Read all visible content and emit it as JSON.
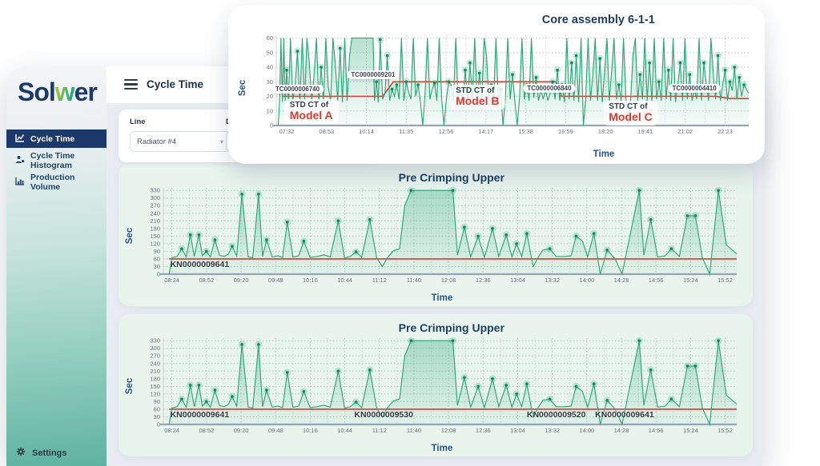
{
  "brand": {
    "part1": "Sol",
    "w": "w",
    "part2": "er"
  },
  "sidebar": {
    "items": [
      {
        "label": "Cycle Time",
        "active": true
      },
      {
        "label": "Cycle Time Histogram",
        "active": false
      },
      {
        "label": "Production Volume",
        "active": false
      }
    ],
    "settings_label": "Settings"
  },
  "header": {
    "title": "Cycle Time"
  },
  "filters": {
    "line_label": "Line",
    "line_value": "Radiator #4",
    "date_label": "Date",
    "chevron": "▾"
  },
  "colors": {
    "green": "#2aa876",
    "green_dark": "#15875d",
    "red": "#df382c",
    "navy": "#1d3e63"
  },
  "series_library": {
    "core_assembly": [
      [
        0.004,
        0
      ],
      [
        0.007,
        16
      ],
      [
        0.01,
        60
      ],
      [
        0.013,
        16
      ],
      [
        0.016,
        60
      ],
      [
        0.019,
        17
      ],
      [
        0.022,
        38
      ],
      [
        0.026,
        16
      ],
      [
        0.03,
        60
      ],
      [
        0.035,
        17
      ],
      [
        0.04,
        28
      ],
      [
        0.045,
        51
      ],
      [
        0.05,
        16
      ],
      [
        0.055,
        60
      ],
      [
        0.06,
        17
      ],
      [
        0.065,
        60
      ],
      [
        0.07,
        43
      ],
      [
        0.075,
        17
      ],
      [
        0.08,
        35
      ],
      [
        0.085,
        60
      ],
      [
        0.09,
        16
      ],
      [
        0.095,
        40
      ],
      [
        0.1,
        17
      ],
      [
        0.105,
        60
      ],
      [
        0.11,
        27
      ],
      [
        0.115,
        16
      ],
      [
        0.12,
        60
      ],
      [
        0.125,
        42
      ],
      [
        0.13,
        17
      ],
      [
        0.135,
        53
      ],
      [
        0.14,
        16
      ],
      [
        0.145,
        60
      ],
      [
        0.15,
        17
      ],
      [
        0.155,
        48
      ],
      [
        0.16,
        60
      ],
      [
        0.205,
        60
      ],
      [
        0.208,
        17
      ],
      [
        0.212,
        30
      ],
      [
        0.216,
        16
      ],
      [
        0.22,
        59
      ],
      [
        0.225,
        18
      ],
      [
        0.23,
        22
      ],
      [
        0.235,
        48
      ],
      [
        0.24,
        17
      ],
      [
        0.245,
        25
      ],
      [
        0.25,
        20
      ],
      [
        0.255,
        28
      ],
      [
        0.26,
        18
      ],
      [
        0.265,
        60
      ],
      [
        0.27,
        17
      ],
      [
        0.275,
        30
      ],
      [
        0.28,
        23
      ],
      [
        0.285,
        18
      ],
      [
        0.29,
        60
      ],
      [
        0.295,
        20
      ],
      [
        0.3,
        28
      ],
      [
        0.305,
        17
      ],
      [
        0.31,
        0
      ],
      [
        0.315,
        22
      ],
      [
        0.32,
        60
      ],
      [
        0.325,
        18
      ],
      [
        0.33,
        25
      ],
      [
        0.335,
        29
      ],
      [
        0.34,
        17
      ],
      [
        0.345,
        60
      ],
      [
        0.35,
        19
      ],
      [
        0.355,
        0
      ],
      [
        0.36,
        18
      ],
      [
        0.365,
        30
      ],
      [
        0.37,
        28
      ],
      [
        0.375,
        17
      ],
      [
        0.38,
        60
      ],
      [
        0.385,
        18
      ],
      [
        0.39,
        24
      ],
      [
        0.395,
        17
      ],
      [
        0.4,
        38
      ],
      [
        0.405,
        16
      ],
      [
        0.41,
        43
      ],
      [
        0.415,
        18
      ],
      [
        0.42,
        60
      ],
      [
        0.425,
        17
      ],
      [
        0.43,
        36
      ],
      [
        0.435,
        18
      ],
      [
        0.44,
        60
      ],
      [
        0.445,
        48
      ],
      [
        0.45,
        17
      ],
      [
        0.455,
        28
      ],
      [
        0.46,
        18
      ],
      [
        0.465,
        60
      ],
      [
        0.47,
        17
      ],
      [
        0.475,
        25
      ],
      [
        0.48,
        0
      ],
      [
        0.485,
        19
      ],
      [
        0.49,
        60
      ],
      [
        0.495,
        18
      ],
      [
        0.5,
        35
      ],
      [
        0.505,
        17
      ],
      [
        0.51,
        0
      ],
      [
        0.515,
        20
      ],
      [
        0.52,
        60
      ],
      [
        0.525,
        18
      ],
      [
        0.53,
        28
      ],
      [
        0.535,
        17
      ],
      [
        0.54,
        60
      ],
      [
        0.545,
        19
      ],
      [
        0.55,
        33
      ],
      [
        0.555,
        17
      ],
      [
        0.56,
        25
      ],
      [
        0.565,
        18
      ],
      [
        0.57,
        24
      ],
      [
        0.575,
        17
      ],
      [
        0.58,
        23
      ],
      [
        0.585,
        30
      ],
      [
        0.59,
        18
      ],
      [
        0.595,
        38
      ],
      [
        0.6,
        17
      ],
      [
        0.605,
        28
      ],
      [
        0.61,
        16
      ],
      [
        0.615,
        60
      ],
      [
        0.62,
        18
      ],
      [
        0.625,
        43
      ],
      [
        0.63,
        17
      ],
      [
        0.635,
        48
      ],
      [
        0.64,
        16
      ],
      [
        0.645,
        60
      ],
      [
        0.65,
        0
      ],
      [
        0.655,
        18
      ],
      [
        0.66,
        60
      ],
      [
        0.665,
        17
      ],
      [
        0.67,
        35
      ],
      [
        0.675,
        60
      ],
      [
        0.68,
        17
      ],
      [
        0.685,
        46
      ],
      [
        0.69,
        16
      ],
      [
        0.7,
        60
      ],
      [
        0.705,
        17
      ],
      [
        0.71,
        38
      ],
      [
        0.715,
        60
      ],
      [
        0.72,
        18
      ],
      [
        0.725,
        28
      ],
      [
        0.73,
        17
      ],
      [
        0.735,
        60
      ],
      [
        0.74,
        19
      ],
      [
        0.745,
        0
      ],
      [
        0.75,
        17
      ],
      [
        0.755,
        48
      ],
      [
        0.76,
        60
      ],
      [
        0.765,
        17
      ],
      [
        0.77,
        35
      ],
      [
        0.775,
        18
      ],
      [
        0.78,
        60
      ],
      [
        0.785,
        17
      ],
      [
        0.79,
        43
      ],
      [
        0.795,
        16
      ],
      [
        0.8,
        60
      ],
      [
        0.805,
        18
      ],
      [
        0.81,
        30
      ],
      [
        0.815,
        17
      ],
      [
        0.82,
        60
      ],
      [
        0.825,
        18
      ],
      [
        0.83,
        38
      ],
      [
        0.835,
        17
      ],
      [
        0.84,
        60
      ],
      [
        0.845,
        16
      ],
      [
        0.85,
        28
      ],
      [
        0.855,
        43
      ],
      [
        0.86,
        17
      ],
      [
        0.865,
        60
      ],
      [
        0.87,
        18
      ],
      [
        0.875,
        35
      ],
      [
        0.88,
        17
      ],
      [
        0.885,
        25
      ],
      [
        0.89,
        18
      ],
      [
        0.895,
        60
      ],
      [
        0.9,
        17
      ],
      [
        0.905,
        43
      ],
      [
        0.91,
        29
      ],
      [
        0.915,
        17
      ],
      [
        0.92,
        60
      ],
      [
        0.925,
        35
      ],
      [
        0.93,
        18
      ],
      [
        0.935,
        48
      ],
      [
        0.94,
        17
      ],
      [
        0.945,
        28
      ],
      [
        0.95,
        38
      ],
      [
        0.955,
        17
      ],
      [
        0.96,
        30
      ],
      [
        0.965,
        24
      ],
      [
        0.97,
        40
      ],
      [
        0.975,
        18
      ],
      [
        0.98,
        33
      ],
      [
        0.985,
        20
      ],
      [
        0.99,
        28
      ],
      [
        1.0,
        22
      ]
    ],
    "pre_crimping": [
      [
        0.01,
        0
      ],
      [
        0.015,
        65
      ],
      [
        0.024,
        70
      ],
      [
        0.032,
        100
      ],
      [
        0.04,
        68
      ],
      [
        0.047,
        155
      ],
      [
        0.054,
        70
      ],
      [
        0.062,
        155
      ],
      [
        0.068,
        72
      ],
      [
        0.075,
        90
      ],
      [
        0.082,
        68
      ],
      [
        0.09,
        135
      ],
      [
        0.098,
        74
      ],
      [
        0.106,
        70
      ],
      [
        0.113,
        78
      ],
      [
        0.12,
        110
      ],
      [
        0.128,
        72
      ],
      [
        0.137,
        315
      ],
      [
        0.148,
        68
      ],
      [
        0.156,
        65
      ],
      [
        0.166,
        315
      ],
      [
        0.173,
        70
      ],
      [
        0.18,
        135
      ],
      [
        0.19,
        68
      ],
      [
        0.2,
        72
      ],
      [
        0.208,
        66
      ],
      [
        0.216,
        205
      ],
      [
        0.226,
        68
      ],
      [
        0.236,
        72
      ],
      [
        0.245,
        130
      ],
      [
        0.256,
        66
      ],
      [
        0.268,
        70
      ],
      [
        0.28,
        76
      ],
      [
        0.291,
        68
      ],
      [
        0.305,
        210
      ],
      [
        0.316,
        64
      ],
      [
        0.326,
        70
      ],
      [
        0.336,
        88
      ],
      [
        0.346,
        66
      ],
      [
        0.36,
        215
      ],
      [
        0.372,
        64
      ],
      [
        0.382,
        30
      ],
      [
        0.391,
        66
      ],
      [
        0.401,
        92
      ],
      [
        0.412,
        100
      ],
      [
        0.421,
        270
      ],
      [
        0.432,
        330
      ],
      [
        0.505,
        330
      ],
      [
        0.513,
        75
      ],
      [
        0.525,
        185
      ],
      [
        0.536,
        68
      ],
      [
        0.549,
        150
      ],
      [
        0.56,
        66
      ],
      [
        0.574,
        180
      ],
      [
        0.585,
        70
      ],
      [
        0.598,
        155
      ],
      [
        0.608,
        68
      ],
      [
        0.616,
        120
      ],
      [
        0.625,
        70
      ],
      [
        0.634,
        160
      ],
      [
        0.645,
        30
      ],
      [
        0.654,
        68
      ],
      [
        0.662,
        95
      ],
      [
        0.674,
        100
      ],
      [
        0.685,
        70
      ],
      [
        0.7,
        70
      ],
      [
        0.711,
        72
      ],
      [
        0.72,
        150
      ],
      [
        0.731,
        130
      ],
      [
        0.74,
        68
      ],
      [
        0.751,
        160
      ],
      [
        0.762,
        0
      ],
      [
        0.774,
        95
      ],
      [
        0.788,
        60
      ],
      [
        0.8,
        0
      ],
      [
        0.83,
        330
      ],
      [
        0.838,
        75
      ],
      [
        0.85,
        215
      ],
      [
        0.862,
        68
      ],
      [
        0.875,
        72
      ],
      [
        0.886,
        100
      ],
      [
        0.9,
        70
      ],
      [
        0.914,
        230
      ],
      [
        0.928,
        230
      ],
      [
        0.94,
        66
      ],
      [
        0.953,
        0
      ],
      [
        0.968,
        330
      ],
      [
        0.982,
        115
      ],
      [
        1.0,
        80
      ]
    ]
  },
  "chart_data": [
    {
      "type": "line",
      "title": "Core assembly 6-1-1",
      "xlabel": "Time",
      "ylabel": "Sec",
      "ylim": [
        0,
        60
      ],
      "ymax": 62,
      "yticks": [
        0,
        10,
        20,
        30,
        40,
        50,
        60
      ],
      "xticks": [
        "07:32",
        "08:53",
        "10:14",
        "11:35",
        "12:56",
        "14:17",
        "15:38",
        "16:59",
        "18:20",
        "19:41",
        "21:02",
        "22:23"
      ],
      "xt0": 0.022,
      "xts": 0.08436,
      "series_ref": "core_assembly",
      "std_ct_line": [
        [
          0.012,
          20
        ],
        [
          0.225,
          20
        ],
        [
          0.248,
          30
        ],
        [
          0.592,
          30
        ],
        [
          0.604,
          20
        ],
        [
          0.93,
          20
        ],
        [
          0.96,
          18.5
        ],
        [
          1.0,
          18.5
        ]
      ],
      "std_ct_values": {
        "Model A": 20,
        "Model B": 30,
        "Model C": 20
      },
      "annotations": [
        {
          "kind": "pill",
          "text": "TC0000006740",
          "f": 0.045,
          "v": 22
        },
        {
          "kind": "pill",
          "text": "TC0000009201",
          "f": 0.205,
          "v": 32
        },
        {
          "kind": "pill",
          "text": "TC0000006840",
          "f": 0.578,
          "v": 22.5
        },
        {
          "kind": "pill",
          "text": "TC0000004410",
          "f": 0.885,
          "v": 22.5
        },
        {
          "kind": "std",
          "line1": "STD CT of",
          "line2": "Model A",
          "f": 0.074,
          "v": 18
        },
        {
          "kind": "std",
          "line1": "STD CT of",
          "line2": "Model B",
          "f": 0.426,
          "v": 28
        },
        {
          "kind": "std",
          "line1": "STD CT of",
          "line2": "Model C",
          "f": 0.75,
          "v": 17
        }
      ],
      "margins": {
        "l": 32,
        "r": 8,
        "t": 4,
        "b": 22
      },
      "grid": "#bcc8d3",
      "tickFont": 7.5,
      "marker_min": 24,
      "marker_max": 59
    },
    {
      "type": "line",
      "title": "Pre Crimping Upper",
      "xlabel": "Time",
      "ylabel": "Sec",
      "ylim": [
        0,
        330
      ],
      "ymax": 340,
      "yticks": [
        0,
        30,
        60,
        90,
        120,
        150,
        180,
        210,
        240,
        270,
        300,
        330
      ],
      "xticks": [
        "08:24",
        "08:52",
        "09:20",
        "09:48",
        "10:16",
        "10:44",
        "11:12",
        "11:40",
        "12:08",
        "12:36",
        "13:04",
        "13:32",
        "14:00",
        "14:28",
        "14:56",
        "15:24",
        "15:52"
      ],
      "xt0": 0.015,
      "xts": 0.0603,
      "series_ref": "pre_crimping",
      "std_ct_line": [
        [
          0.01,
          60
        ],
        [
          1.0,
          60
        ]
      ],
      "std_ct_values": {
        "STD CT": 60
      },
      "annotations": [
        {
          "kind": "kn",
          "text": "KN0000009641",
          "f": 0.012,
          "v": 56
        }
      ],
      "margins": {
        "l": 34,
        "r": 10,
        "t": 4,
        "b": 16
      },
      "grid": "#a5cbb8",
      "tickFont": 7.5,
      "marker_min": 88,
      "marker_max": 400
    },
    {
      "type": "line",
      "title": "Pre Crimping Upper",
      "xlabel": "Time",
      "ylabel": "Sec",
      "ylim": [
        0,
        330
      ],
      "ymax": 340,
      "yticks": [
        0,
        30,
        60,
        90,
        120,
        150,
        180,
        210,
        240,
        270,
        300,
        330
      ],
      "xticks": [
        "08:24",
        "08:52",
        "09:20",
        "09:48",
        "10:16",
        "10:44",
        "11:12",
        "11:40",
        "12:08",
        "12:36",
        "13:04",
        "13:32",
        "14:00",
        "14:28",
        "14:56",
        "15:24",
        "15:52"
      ],
      "xt0": 0.015,
      "xts": 0.0603,
      "series_ref": "pre_crimping",
      "std_ct_line": [
        [
          0.01,
          60
        ],
        [
          1.0,
          60
        ]
      ],
      "std_ct_values": {
        "STD CT": 60
      },
      "annotations": [
        {
          "kind": "kn",
          "text": "KN0000009641",
          "f": 0.012,
          "v": 56
        },
        {
          "kind": "kn",
          "text": "KN0000009530",
          "f": 0.333,
          "v": 56
        },
        {
          "kind": "kn",
          "text": "KN0000009520",
          "f": 0.634,
          "v": 56
        },
        {
          "kind": "kn",
          "text": "KN0000009641",
          "f": 0.753,
          "v": 56
        }
      ],
      "margins": {
        "l": 34,
        "r": 10,
        "t": 4,
        "b": 16
      },
      "grid": "#a5cbb8",
      "tickFont": 7.5,
      "marker_min": 88,
      "marker_max": 400
    }
  ]
}
